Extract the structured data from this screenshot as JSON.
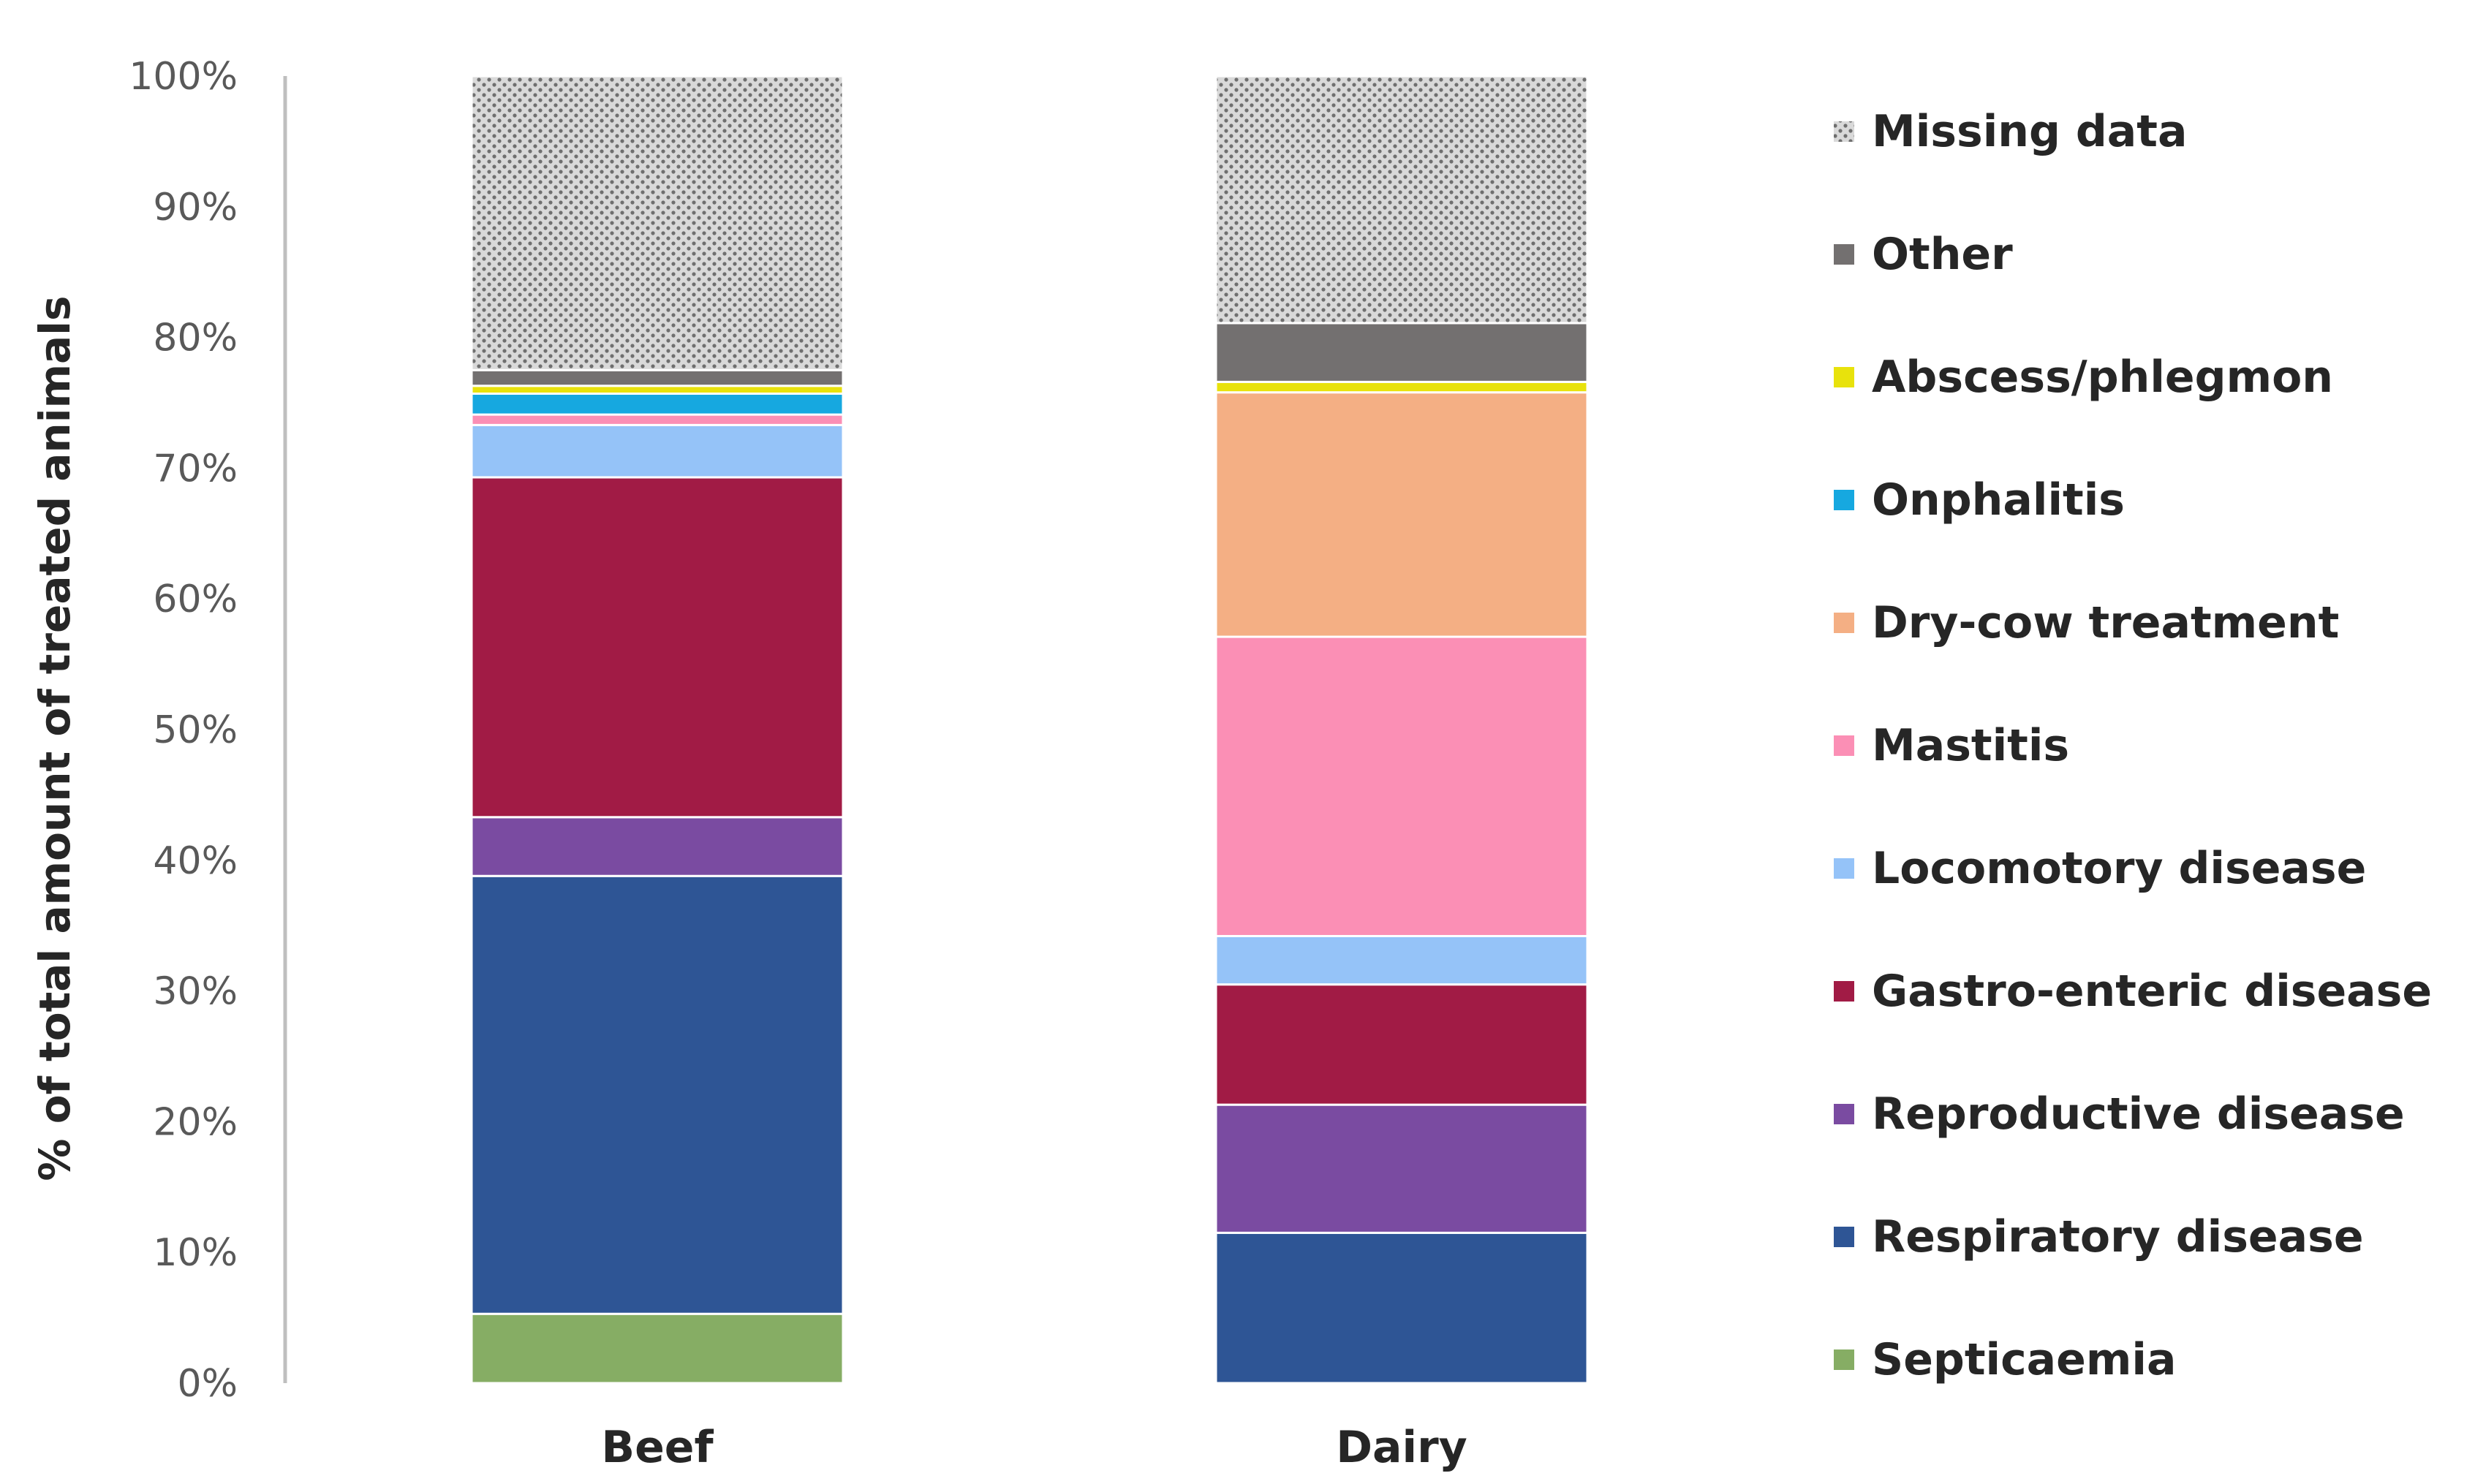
{
  "chart_data": {
    "type": "bar",
    "stacked": true,
    "title": "",
    "xlabel": "",
    "ylabel": "% of total amount of treated animals",
    "ylim": [
      0,
      100
    ],
    "yticks": [
      "0%",
      "10%",
      "20%",
      "30%",
      "40%",
      "50%",
      "60%",
      "70%",
      "80%",
      "90%",
      "100%"
    ],
    "categories": [
      "Beef",
      "Dairy"
    ],
    "legend_position": "right",
    "grid": false,
    "series": [
      {
        "name": "Septicaemia",
        "color": "#86ad64",
        "values": [
          5.3,
          0
        ]
      },
      {
        "name": "Respiratory disease",
        "color": "#2e5595",
        "values": [
          33.5,
          11.5
        ]
      },
      {
        "name": "Reproductive disease",
        "color": "#7a4ba1",
        "values": [
          4.5,
          9.8
        ]
      },
      {
        "name": "Gastro-enteric disease",
        "color": "#a11b45",
        "values": [
          26.0,
          9.2
        ]
      },
      {
        "name": "Locomotory disease",
        "color": "#95c3f8",
        "values": [
          4.0,
          3.7
        ]
      },
      {
        "name": "Mastitis",
        "color": "#fb8fb5",
        "values": [
          0.8,
          22.9
        ]
      },
      {
        "name": "Dry-cow treatment",
        "color": "#f4af84",
        "values": [
          0,
          18.7
        ]
      },
      {
        "name": "Onphalitis",
        "color": "#16a8e0",
        "values": [
          1.6,
          0
        ]
      },
      {
        "name": "Abscess/phlegmon",
        "color": "#e8e20c",
        "values": [
          0.6,
          0.8
        ]
      },
      {
        "name": "Other",
        "color": "#737070",
        "values": [
          1.2,
          4.5
        ]
      },
      {
        "name": "Missing data",
        "color": "#d9d9d9",
        "pattern": "dots",
        "values": [
          22.5,
          18.9
        ]
      }
    ]
  }
}
